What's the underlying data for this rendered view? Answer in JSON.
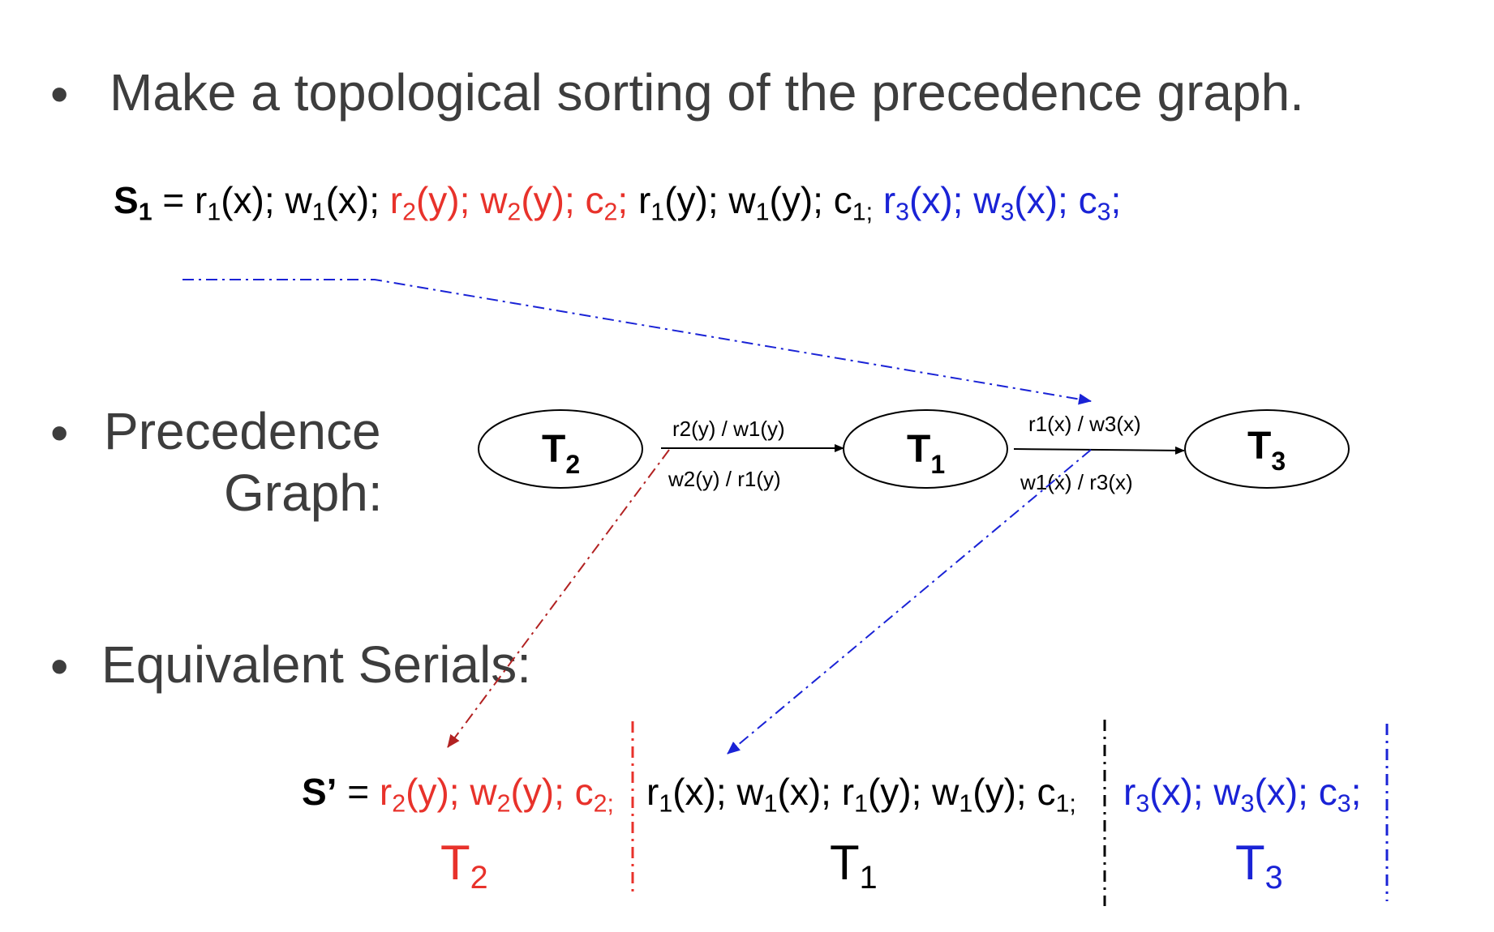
{
  "bullets": {
    "b1": "Make a topological sorting of the precedence graph.",
    "b2_line1": "Precedence",
    "b2_line2": "Graph:",
    "b3": "Equivalent Serials:"
  },
  "schedule_s1": {
    "label_main": "S",
    "label_sub": "1",
    "eq": " = ",
    "ops": [
      {
        "t": "r",
        "s": "1",
        "a": "(x); ",
        "c": "black"
      },
      {
        "t": "w",
        "s": "1",
        "a": "(x); ",
        "c": "black"
      },
      {
        "t": "r",
        "s": "2",
        "a": "(y); ",
        "c": "red"
      },
      {
        "t": "w",
        "s": "2",
        "a": "(y); ",
        "c": "red"
      },
      {
        "t": "c",
        "s": "2",
        "a": "; ",
        "c": "red"
      },
      {
        "t": "r",
        "s": "1",
        "a": "(y); ",
        "c": "black"
      },
      {
        "t": "w",
        "s": "1",
        "a": "(y); ",
        "c": "black"
      },
      {
        "t": "c",
        "s": "1;",
        "a": " ",
        "c": "black"
      },
      {
        "t": "r",
        "s": "3",
        "a": "(x); ",
        "c": "blue"
      },
      {
        "t": "w",
        "s": "3",
        "a": "(x); ",
        "c": "blue"
      },
      {
        "t": "c",
        "s": "3",
        "a": ";",
        "c": "blue"
      }
    ]
  },
  "graph": {
    "nodes": [
      {
        "main": "T",
        "sub": "2"
      },
      {
        "main": "T",
        "sub": "1"
      },
      {
        "main": "T",
        "sub": "3"
      }
    ],
    "edges": [
      {
        "above": "r2(y) / w1(y)",
        "below": "w2(y) / r1(y)"
      },
      {
        "above": "r1(x) / w3(x)",
        "below": "w1(x) / r3(x)"
      }
    ]
  },
  "serial": {
    "label": "S’",
    "eq": " = ",
    "seg_t2": [
      {
        "t": "r",
        "s": "2",
        "a": "(y); "
      },
      {
        "t": "w",
        "s": "2",
        "a": "(y); "
      },
      {
        "t": "c",
        "s": "2;",
        "a": ""
      }
    ],
    "seg_t1": [
      {
        "t": "r",
        "s": "1",
        "a": "(x); "
      },
      {
        "t": "w",
        "s": "1",
        "a": "(x); "
      },
      {
        "t": "r",
        "s": "1",
        "a": "(y); "
      },
      {
        "t": "w",
        "s": "1",
        "a": "(y); "
      },
      {
        "t": "c",
        "s": "1;",
        "a": ""
      }
    ],
    "seg_t3": [
      {
        "t": "r",
        "s": "3",
        "a": "(x); "
      },
      {
        "t": "w",
        "s": "3",
        "a": "(x); "
      },
      {
        "t": "c",
        "s": "3",
        "a": ";"
      }
    ],
    "labels": [
      {
        "main": "T",
        "sub": "2",
        "c": "red"
      },
      {
        "main": "T",
        "sub": "1",
        "c": "black"
      },
      {
        "main": "T",
        "sub": "3",
        "c": "blue"
      }
    ]
  },
  "colors": {
    "red": "#e8322b",
    "blue": "#1a23d6",
    "darkred": "#b22222",
    "text_gray": "#3d3d3d"
  }
}
